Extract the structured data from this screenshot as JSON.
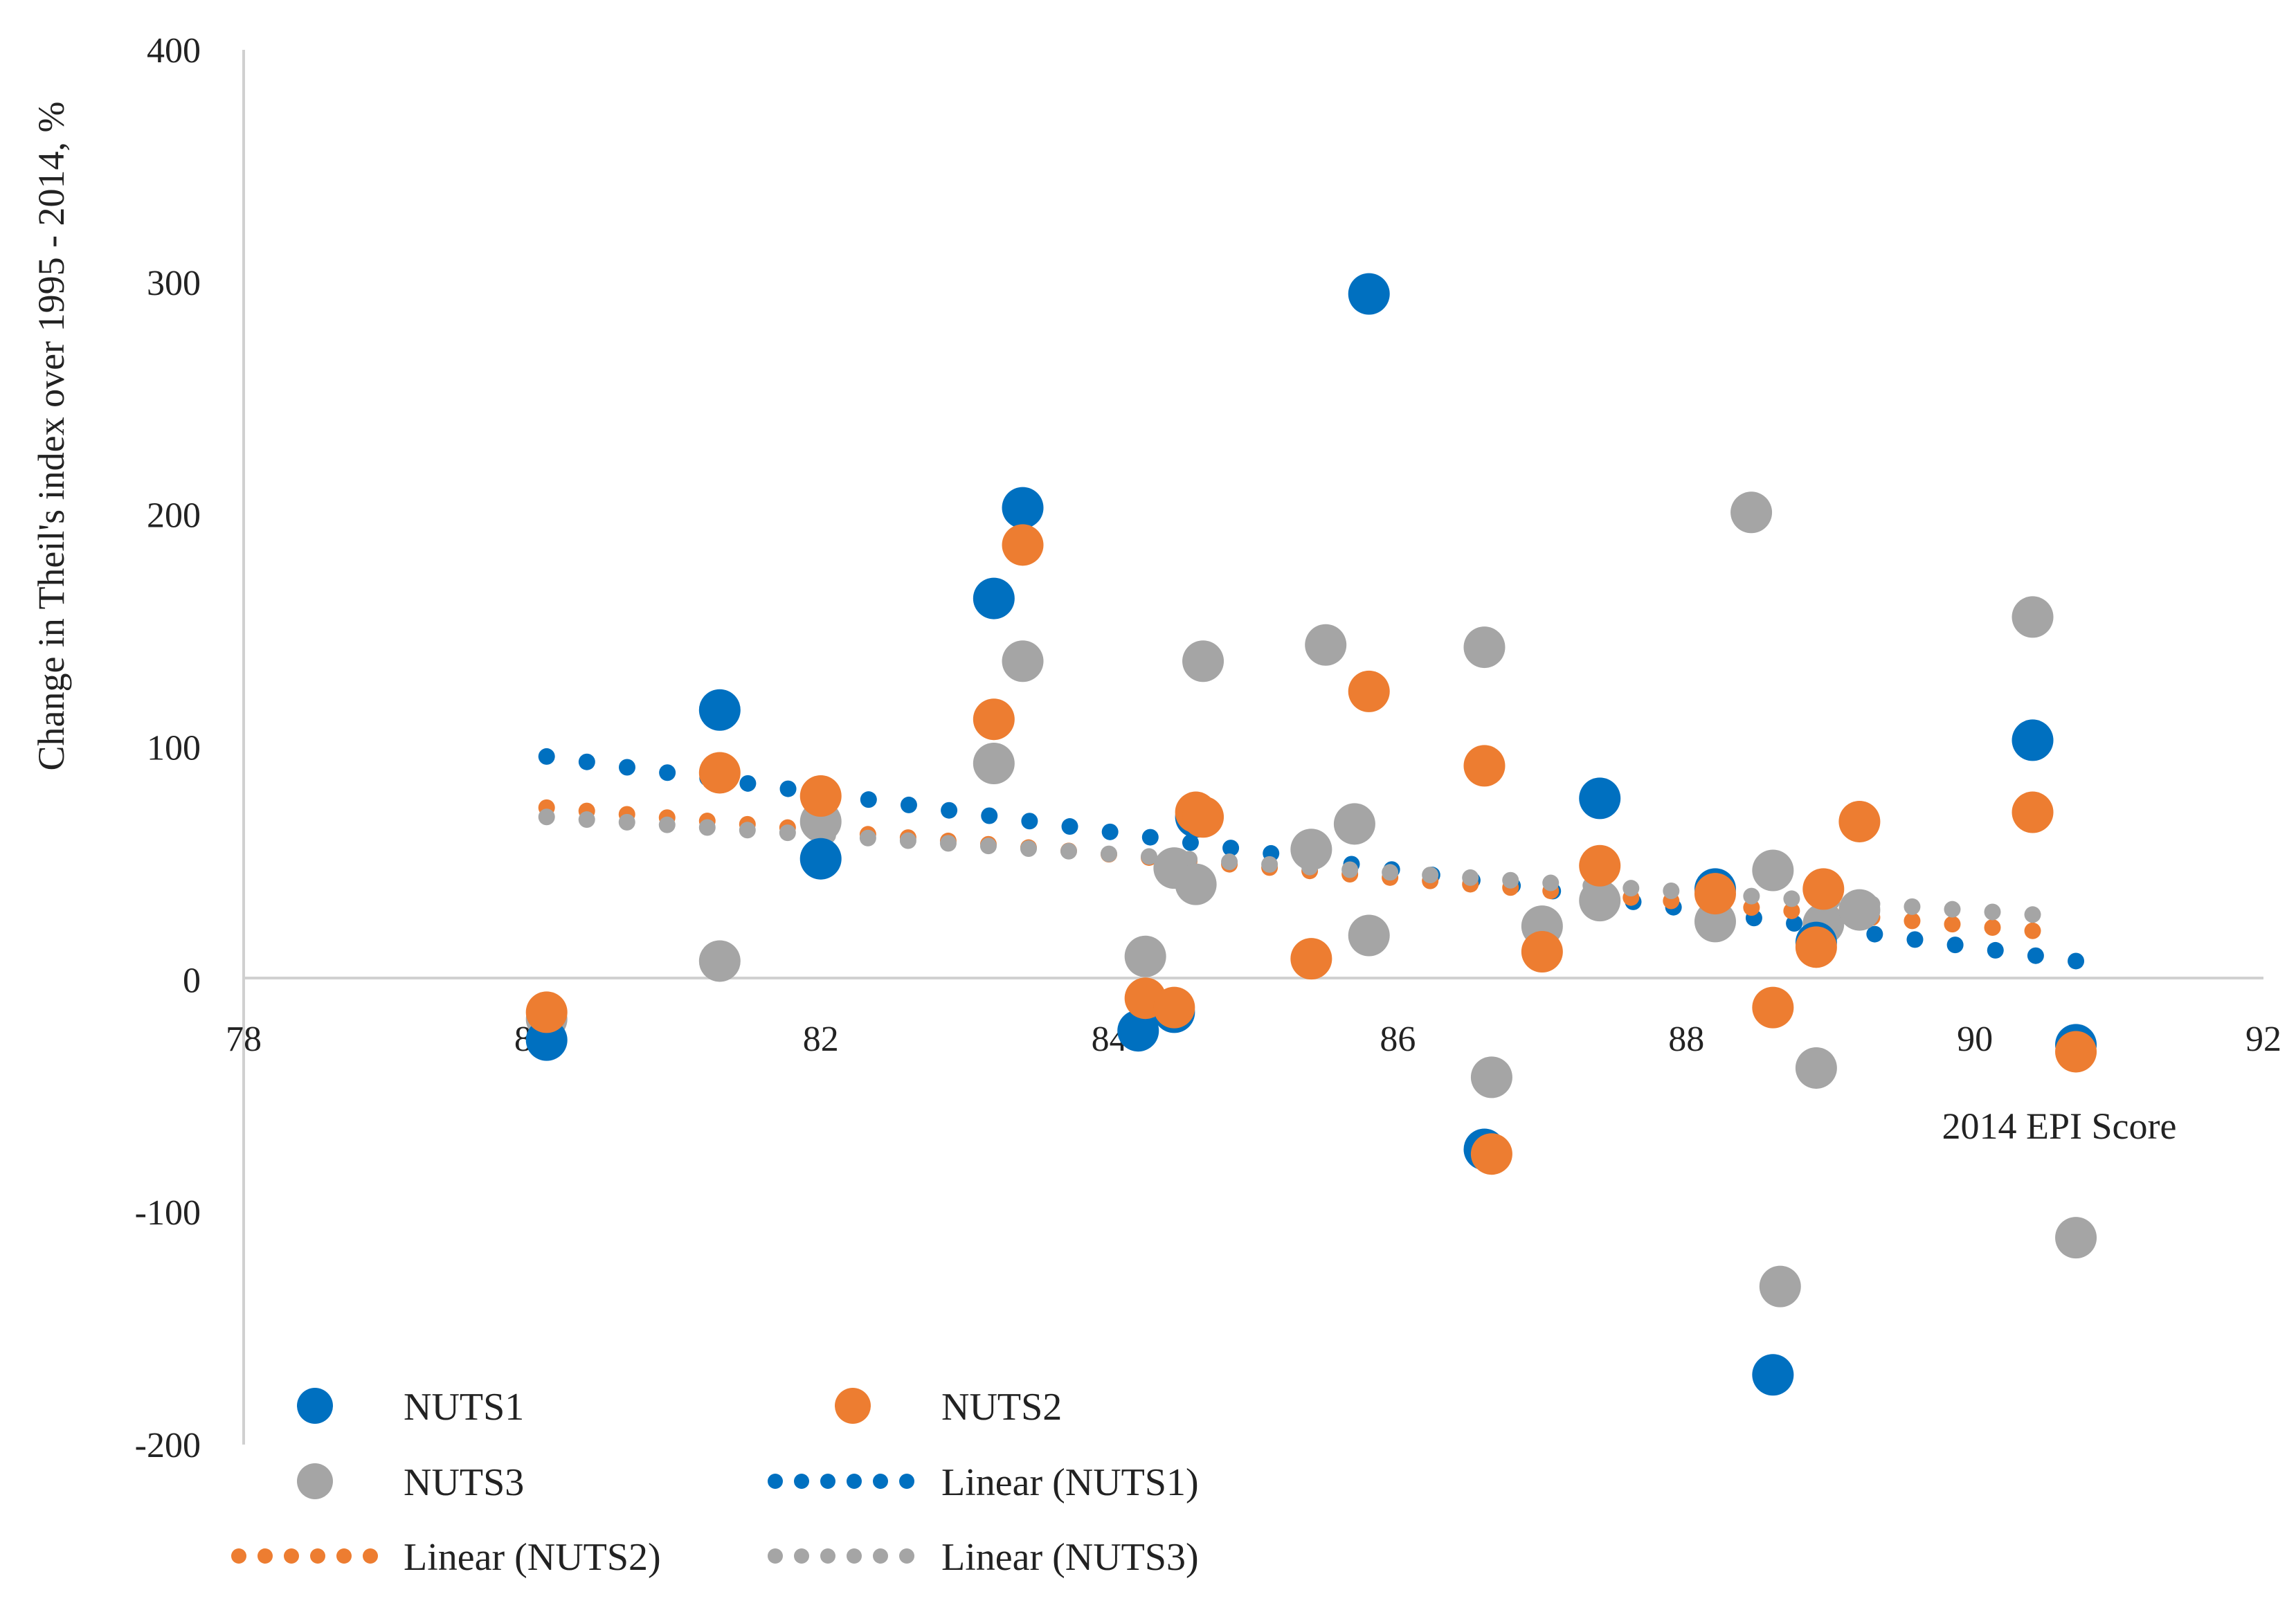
{
  "chart_data": {
    "type": "scatter",
    "title": "",
    "xlabel": "2014 EPI Score",
    "ylabel": "Change in Theil's index over 1995 - 2014, %",
    "xlim": [
      78,
      92
    ],
    "ylim": [
      -200,
      400
    ],
    "xticks": [
      "78",
      "80",
      "82",
      "84",
      "86",
      "88",
      "90",
      "92"
    ],
    "yticks": [
      "400",
      "300",
      "200",
      "100",
      "0",
      "-100",
      "-200"
    ],
    "grid": false,
    "legend_position": "bottom-left",
    "colors": {
      "NUTS1": "#0070C0",
      "NUTS2": "#ED7D31",
      "NUTS3": "#A5A5A5"
    },
    "series": [
      {
        "name": "NUTS1",
        "x": [
          80.1,
          81.3,
          82.0,
          83.2,
          83.4,
          84.2,
          84.45,
          84.6,
          85.8,
          86.6,
          87.4,
          88.2,
          88.6,
          88.9,
          90.4,
          90.7
        ],
        "y": [
          -26,
          116,
          52,
          164,
          203,
          -22,
          -14,
          70,
          295,
          -73,
          78,
          39,
          -170,
          16,
          103,
          -28
        ]
      },
      {
        "name": "NUTS2",
        "x": [
          80.1,
          81.3,
          82.0,
          83.2,
          83.4,
          84.25,
          84.45,
          84.6,
          84.65,
          85.4,
          85.8,
          86.6,
          86.65,
          87.0,
          87.4,
          88.2,
          88.6,
          88.9,
          88.95,
          89.2,
          90.4,
          90.7
        ],
        "y": [
          -14,
          89,
          79,
          112,
          187,
          -8,
          -12,
          72,
          70,
          9,
          124,
          92,
          -75,
          12,
          49,
          37,
          -12,
          14,
          39,
          68,
          72,
          -31
        ]
      },
      {
        "name": "NUTS3",
        "x": [
          80.1,
          81.3,
          82.0,
          83.2,
          83.4,
          84.25,
          84.45,
          84.6,
          84.65,
          85.4,
          85.5,
          85.7,
          85.8,
          86.6,
          86.65,
          87.0,
          87.4,
          88.2,
          88.45,
          88.6,
          88.65,
          88.9,
          88.95,
          89.2,
          90.4,
          90.7
        ],
        "y": [
          -17,
          8,
          68,
          93,
          137,
          10,
          48,
          41,
          137,
          56,
          144,
          67,
          19,
          143,
          -42,
          23,
          34,
          25,
          201,
          47,
          -132,
          -38,
          24,
          30,
          156,
          -111
        ]
      }
    ],
    "trendlines": [
      {
        "name": "Linear (NUTS1)",
        "series": "NUTS1",
        "x": [
          80.1,
          90.7
        ],
        "y": [
          96,
          8
        ]
      },
      {
        "name": "Linear (NUTS2)",
        "series": "NUTS2",
        "x": [
          80.1,
          90.4
        ],
        "y": [
          74,
          21
        ]
      },
      {
        "name": "Linear (NUTS3)",
        "series": "NUTS3",
        "x": [
          80.1,
          90.4
        ],
        "y": [
          70,
          28
        ]
      }
    ],
    "legend": [
      "NUTS1",
      "NUTS2",
      "NUTS3",
      "Linear (NUTS1)",
      "Linear (NUTS2)",
      "Linear (NUTS3)"
    ]
  }
}
